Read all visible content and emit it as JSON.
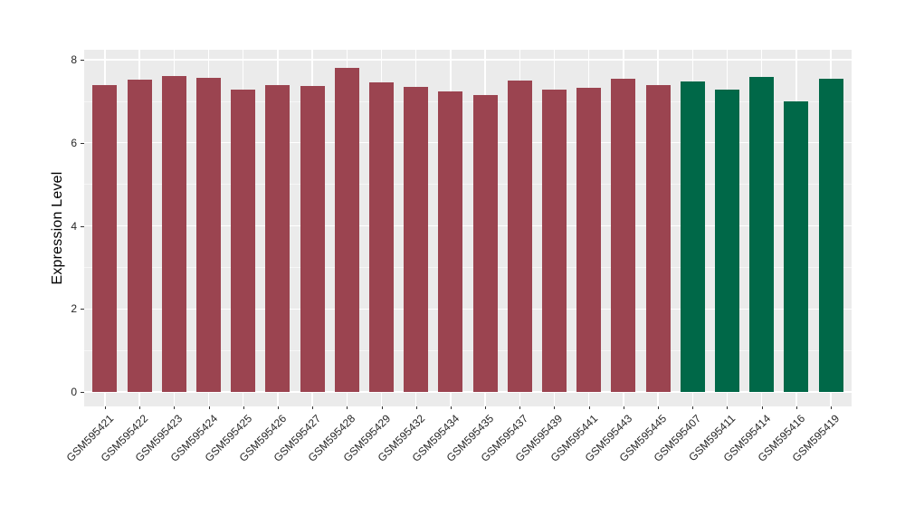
{
  "chart_data": {
    "type": "bar",
    "title": "",
    "xlabel": "",
    "ylabel": "Expression Level",
    "ylim": [
      0,
      8.24
    ],
    "yticks_major": [
      0,
      2,
      4,
      6,
      8
    ],
    "yticks_minor": [
      1,
      3,
      5,
      7
    ],
    "legend_position": "none",
    "grid": "white major and minor horizontal lines plus vertical lines at bar centers on gray panel",
    "panel_background": "#EBEBEB",
    "gridline_color": "#FFFFFF",
    "axis_text_color": "#262626",
    "group_colors": {
      "red_group": "#9B4450",
      "green_group": "#006848"
    },
    "categories": [
      "GSM595421",
      "GSM595422",
      "GSM595423",
      "GSM595424",
      "GSM595425",
      "GSM595426",
      "GSM595427",
      "GSM595428",
      "GSM595429",
      "GSM595432",
      "GSM595434",
      "GSM595435",
      "GSM595437",
      "GSM595439",
      "GSM595441",
      "GSM595443",
      "GSM595445",
      "GSM595407",
      "GSM595411",
      "GSM595414",
      "GSM595416",
      "GSM595419"
    ],
    "values": [
      7.38,
      7.51,
      7.6,
      7.56,
      7.28,
      7.38,
      7.37,
      7.81,
      7.45,
      7.34,
      7.24,
      7.16,
      7.5,
      7.27,
      7.33,
      7.55,
      7.4,
      7.48,
      7.29,
      7.58,
      7.0,
      7.55
    ],
    "colors": [
      "#9B4450",
      "#9B4450",
      "#9B4450",
      "#9B4450",
      "#9B4450",
      "#9B4450",
      "#9B4450",
      "#9B4450",
      "#9B4450",
      "#9B4450",
      "#9B4450",
      "#9B4450",
      "#9B4450",
      "#9B4450",
      "#9B4450",
      "#9B4450",
      "#9B4450",
      "#006848",
      "#006848",
      "#006848",
      "#006848",
      "#006848"
    ]
  }
}
